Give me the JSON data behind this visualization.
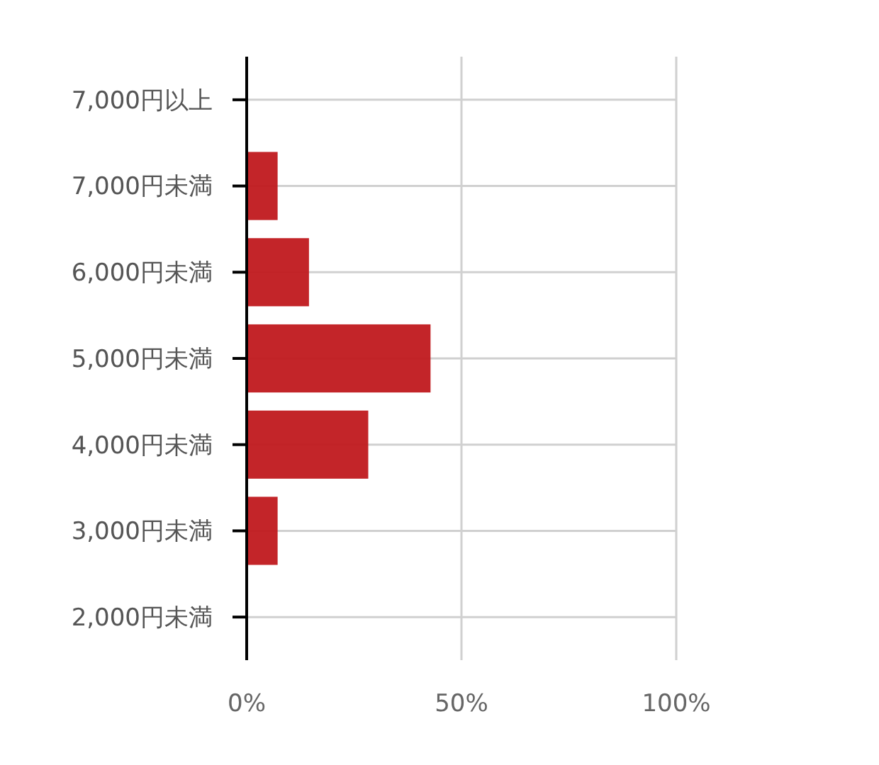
{
  "chart_data": {
    "type": "bar",
    "orientation": "horizontal",
    "categories": [
      "7,000円以上",
      "7,000円未満",
      "6,000円未満",
      "5,000円未満",
      "4,000円未満",
      "3,000円未満",
      "2,000円未満"
    ],
    "values": [
      0,
      7.2,
      14.5,
      42.8,
      28.3,
      7.2,
      0
    ],
    "color": "#c0191e",
    "xlim": [
      0,
      100
    ],
    "xticks": [
      {
        "value": 0,
        "label": "0%"
      },
      {
        "value": 50,
        "label": "50%"
      },
      {
        "value": 100,
        "label": "100%"
      }
    ],
    "grid": true
  }
}
